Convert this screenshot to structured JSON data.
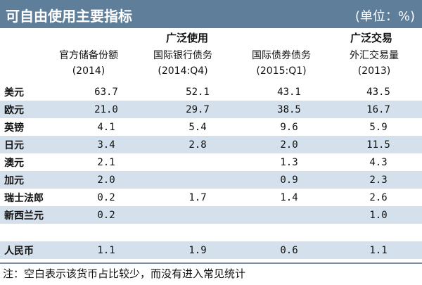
{
  "title": "可自由使用主要指标",
  "unit": "(单位：%)",
  "groups": {
    "wide_use": "广泛使用",
    "wide_trade": "广泛交易"
  },
  "columns": [
    {
      "line1": "官方储备份额",
      "line2": "(2014)"
    },
    {
      "line1": "国际银行债务",
      "line2": "(2014:Q4)"
    },
    {
      "line1": "国际债券债务",
      "line2": "(2015:Q1)"
    },
    {
      "line1": "外汇交易量",
      "line2": "(2013)"
    }
  ],
  "rows": [
    {
      "name": "美元",
      "v": [
        "63.7",
        "52.1",
        "43.1",
        "43.5"
      ]
    },
    {
      "name": "欧元",
      "v": [
        "21.0",
        "29.7",
        "38.5",
        "16.7"
      ]
    },
    {
      "name": "英镑",
      "v": [
        "4.1",
        "5.4",
        "9.6",
        "5.9"
      ]
    },
    {
      "name": "日元",
      "v": [
        "3.4",
        "2.8",
        "2.0",
        "11.5"
      ]
    },
    {
      "name": "澳元",
      "v": [
        "2.1",
        "",
        "1.3",
        "4.3"
      ]
    },
    {
      "name": "加元",
      "v": [
        "2.0",
        "",
        "0.9",
        "2.3"
      ]
    },
    {
      "name": "瑞士法郎",
      "v": [
        "0.2",
        "1.7",
        "1.4",
        "2.6"
      ]
    },
    {
      "name": "新西兰元",
      "v": [
        "0.2",
        "",
        "",
        "1.0"
      ]
    },
    {
      "name": "",
      "v": [
        "",
        "",
        "",
        ""
      ]
    },
    {
      "name": "人民币",
      "v": [
        "1.1",
        "1.9",
        "0.6",
        "1.1"
      ]
    }
  ],
  "note": "注：空白表示该货币占比较少，而没有进入常见统计"
}
